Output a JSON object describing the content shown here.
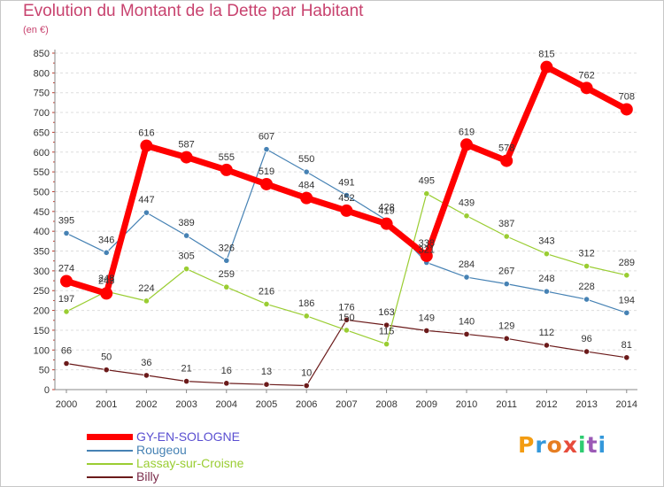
{
  "title": "Evolution du Montant de la Dette par Habitant",
  "unit_label": "(en €)",
  "chart_data": {
    "type": "line",
    "title": "Evolution du Montant de la Dette par Habitant",
    "ylabel": "(en €)",
    "xlabel": "",
    "x": [
      2000,
      2001,
      2002,
      2003,
      2004,
      2005,
      2006,
      2007,
      2008,
      2009,
      2010,
      2011,
      2012,
      2013,
      2014
    ],
    "ylim": [
      0,
      850
    ],
    "yticks": [
      0,
      50,
      100,
      150,
      200,
      250,
      300,
      350,
      400,
      450,
      500,
      550,
      600,
      650,
      700,
      750,
      800,
      850
    ],
    "grid": "horizontal dashed",
    "legend_position": "bottom-left",
    "series": [
      {
        "name": "GY-EN-SOLOGNE",
        "color": "#ff0000",
        "values": [
          274,
          243,
          616,
          587,
          555,
          519,
          484,
          452,
          419,
          338,
          619,
          578,
          815,
          762,
          708
        ]
      },
      {
        "name": "Rougeou",
        "color": "#4682b4",
        "values": [
          395,
          346,
          447,
          389,
          326,
          607,
          550,
          491,
          428,
          321,
          284,
          267,
          248,
          228,
          194
        ]
      },
      {
        "name": "Lassay-sur-Croisne",
        "color": "#9acd32",
        "values": [
          197,
          248,
          224,
          305,
          259,
          216,
          186,
          150,
          115,
          495,
          439,
          387,
          343,
          312,
          289
        ]
      },
      {
        "name": "Billy",
        "color": "#6b1a1a",
        "values": [
          66,
          50,
          36,
          21,
          16,
          13,
          10,
          176,
          163,
          149,
          140,
          129,
          112,
          96,
          81
        ]
      }
    ]
  },
  "logo": {
    "text": "Proxiti",
    "colors": [
      "#f39c12",
      "#3498db",
      "#e67e22",
      "#e74c3c",
      "#2ecc71",
      "#9b59b6",
      "#3498db"
    ]
  }
}
